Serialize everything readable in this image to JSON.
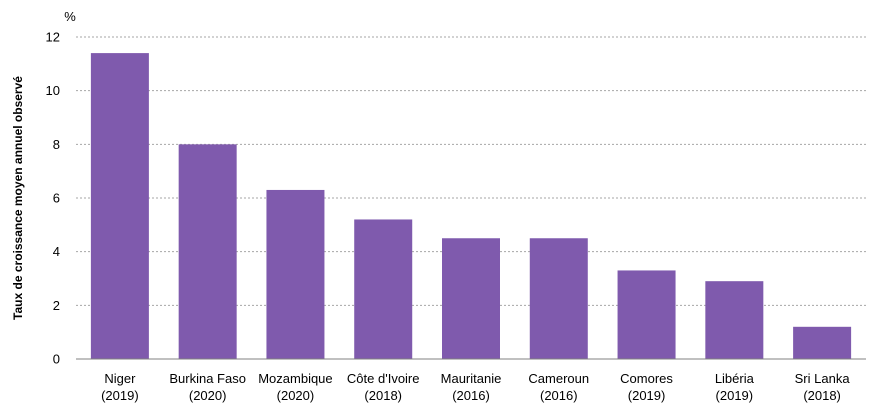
{
  "chart_data": {
    "type": "bar",
    "unit": "%",
    "ylabel": "Taux de croissance moyen annuel observé",
    "xlabel": "",
    "title": "",
    "ylim": [
      0,
      12
    ],
    "yticks": [
      0,
      2,
      4,
      6,
      8,
      10,
      12
    ],
    "grid": true,
    "bar_color": "#7f5aad",
    "categories": [
      {
        "name": "Niger",
        "year": "(2019)"
      },
      {
        "name": "Burkina Faso",
        "year": "(2020)"
      },
      {
        "name": "Mozambique",
        "year": "(2020)"
      },
      {
        "name": "Côte d'Ivoire",
        "year": "(2018)"
      },
      {
        "name": "Mauritanie",
        "year": "(2016)"
      },
      {
        "name": "Cameroun",
        "year": "(2016)"
      },
      {
        "name": "Comores",
        "year": "(2019)"
      },
      {
        "name": "Libéria",
        "year": "(2019)"
      },
      {
        "name": "Sri Lanka",
        "year": "(2018)"
      }
    ],
    "values": [
      11.4,
      8.0,
      6.3,
      5.2,
      4.5,
      4.5,
      3.3,
      2.9,
      1.2
    ]
  }
}
